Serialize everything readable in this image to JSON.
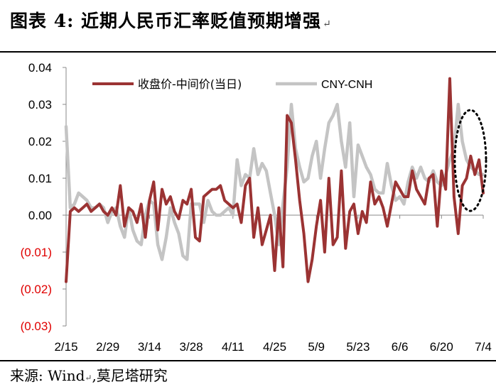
{
  "title": "图表 4:  近期人民币汇率贬值预期增强",
  "title_return_mark": "↵",
  "source": "来源: Wind",
  "source_mark": "↵",
  "source_tail": ",莫尼塔研究",
  "colors": {
    "series1": "#9B3333",
    "series2": "#C4C4C4",
    "negative_tick": "#E00000",
    "annotation": "#000000"
  },
  "chart_data": {
    "type": "line",
    "ylim": [
      -0.03,
      0.04
    ],
    "grid": false,
    "legend_position": "top",
    "y_ticks": [
      {
        "value": 0.04,
        "label": "0.04",
        "negative": false
      },
      {
        "value": 0.03,
        "label": "0.03",
        "negative": false
      },
      {
        "value": 0.02,
        "label": "0.02",
        "negative": false
      },
      {
        "value": 0.01,
        "label": "0.01",
        "negative": false
      },
      {
        "value": 0.0,
        "label": "0.00",
        "negative": false
      },
      {
        "value": -0.01,
        "label": "(0.01)",
        "negative": true
      },
      {
        "value": -0.02,
        "label": "(0.02)",
        "negative": true
      },
      {
        "value": -0.03,
        "label": "(0.03)",
        "negative": true
      }
    ],
    "x_labels": [
      "2/15",
      "2/29",
      "3/14",
      "3/28",
      "4/11",
      "4/25",
      "5/9",
      "5/23",
      "6/6",
      "6/20",
      "7/4"
    ],
    "x_label_index": [
      0,
      10,
      20,
      30,
      40,
      50,
      60,
      70,
      80,
      90,
      100
    ],
    "series": [
      {
        "name": "收盘价-中间价(当日)",
        "values": [
          -0.018,
          0.001,
          0.002,
          0.001,
          0.002,
          0.003,
          0.001,
          0.002,
          0.003,
          0.001,
          0.0,
          0.002,
          0.0,
          0.008,
          -0.003,
          0.002,
          0.001,
          -0.002,
          0.003,
          -0.006,
          0.004,
          0.009,
          -0.004,
          0.007,
          0.003,
          0.005,
          0.001,
          -0.001,
          0.004,
          0.003,
          0.007,
          -0.006,
          -0.007,
          0.005,
          0.006,
          0.007,
          0.007,
          0.008,
          0.004,
          0.003,
          0.002,
          0.003,
          -0.002,
          0.008,
          0.01,
          -0.006,
          0.002,
          -0.008,
          -0.004,
          0.0,
          -0.015,
          0.002,
          -0.014,
          0.027,
          0.025,
          0.015,
          0.004,
          -0.005,
          -0.018,
          -0.012,
          -0.003,
          0.004,
          -0.01,
          0.01,
          -0.008,
          -0.006,
          0.012,
          -0.009,
          0.001,
          0.003,
          -0.005,
          0.001,
          -0.002,
          0.009,
          0.003,
          0.005,
          0.002,
          -0.003,
          0.003,
          0.009,
          0.007,
          0.005,
          0.005,
          0.012,
          0.007,
          0.005,
          0.003,
          0.01,
          0.011,
          -0.003,
          0.012,
          0.007,
          0.037,
          0.005,
          -0.005,
          0.008,
          0.01,
          0.016,
          0.011,
          0.015,
          0.006
        ]
      },
      {
        "name": "CNY-CNH",
        "values": [
          0.024,
          0.002,
          0.003,
          0.006,
          0.005,
          0.004,
          0.002,
          0.002,
          0.003,
          0.002,
          -0.002,
          0.001,
          0.002,
          -0.003,
          -0.006,
          0.002,
          -0.004,
          -0.007,
          -0.008,
          0.0,
          0.004,
          0.003,
          -0.008,
          -0.012,
          -0.006,
          0.002,
          -0.002,
          -0.005,
          -0.011,
          -0.012,
          0.003,
          0.003,
          0.003,
          -0.002,
          0.004,
          0.001,
          0.0,
          0.0,
          0.001,
          0.002,
          0.0,
          0.015,
          0.008,
          0.011,
          0.01,
          0.018,
          0.011,
          0.014,
          0.012,
          0.006,
          0.0,
          -0.008,
          0.003,
          0.013,
          0.03,
          0.018,
          0.013,
          0.009,
          0.01,
          0.016,
          0.02,
          0.01,
          0.018,
          0.025,
          0.027,
          0.03,
          0.02,
          0.013,
          0.025,
          0.005,
          0.019,
          0.016,
          0.013,
          0.011,
          0.007,
          0.006,
          0.006,
          0.014,
          0.008,
          0.004,
          0.005,
          0.003,
          0.009,
          0.013,
          0.01,
          0.013,
          0.01,
          0.009,
          0.012,
          0.009,
          0.008,
          0.011,
          0.015,
          0.018,
          0.03,
          0.02,
          0.015,
          0.013,
          0.012,
          0.011,
          0.011
        ]
      }
    ],
    "annotation": "dotted-ellipse-around-latest-values"
  }
}
